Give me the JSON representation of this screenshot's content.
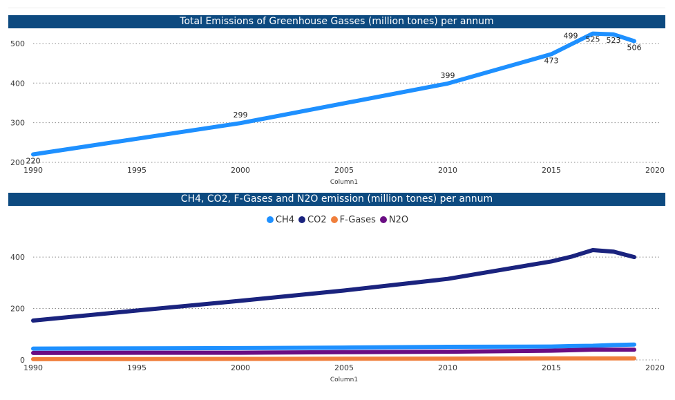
{
  "chart_data": [
    {
      "type": "line",
      "title": "Total Emissions of Greenhouse Gasses (million tones) per annum",
      "xlabel": "Column1",
      "ylabel": "",
      "x": [
        1990,
        2000,
        2010,
        2015,
        2016,
        2017,
        2018,
        2019
      ],
      "series": [
        {
          "values": [
            220,
            299,
            399,
            473,
            499,
            525,
            523,
            506
          ]
        }
      ],
      "data_labels": [
        "220",
        "299",
        "399",
        "473",
        "499",
        "525",
        "523",
        "506"
      ],
      "xlim": [
        1990,
        2020
      ],
      "ylim": [
        200,
        540
      ],
      "x_ticks": [
        1990,
        1995,
        2000,
        2005,
        2010,
        2015,
        2020
      ],
      "y_ticks": [
        200,
        300,
        400,
        500
      ],
      "grid": true,
      "legend": "none",
      "colors": [
        "#1e90ff"
      ]
    },
    {
      "type": "line",
      "title": "CH4, CO2, F-Gases and N2O emission (million tones) per annum",
      "xlabel": "Column1",
      "ylabel": "",
      "x": [
        1990,
        1995,
        2000,
        2005,
        2010,
        2015,
        2016,
        2017,
        2018,
        2019
      ],
      "series": [
        {
          "name": "CH4",
          "values": [
            44,
            45,
            46,
            48,
            51,
            52,
            54,
            55,
            58,
            60
          ]
        },
        {
          "name": "CO2",
          "values": [
            153,
            192,
            230,
            270,
            315,
            383,
            402,
            427,
            421,
            400
          ]
        },
        {
          "name": "F-Gases",
          "values": [
            3,
            3.5,
            4,
            4.5,
            5,
            6,
            6,
            6,
            6,
            6
          ]
        },
        {
          "name": "N2O",
          "values": [
            27,
            28,
            28,
            30,
            32,
            36,
            38,
            40,
            40,
            40
          ]
        }
      ],
      "xlim": [
        1990,
        2020
      ],
      "ylim": [
        0,
        470
      ],
      "x_ticks": [
        1990,
        1995,
        2000,
        2005,
        2010,
        2015,
        2020
      ],
      "y_ticks": [
        0,
        200,
        400
      ],
      "grid": true,
      "legend": "top-center",
      "colors": [
        "#1e90ff",
        "#1a237e",
        "#f07f3c",
        "#6a0d83"
      ]
    }
  ]
}
